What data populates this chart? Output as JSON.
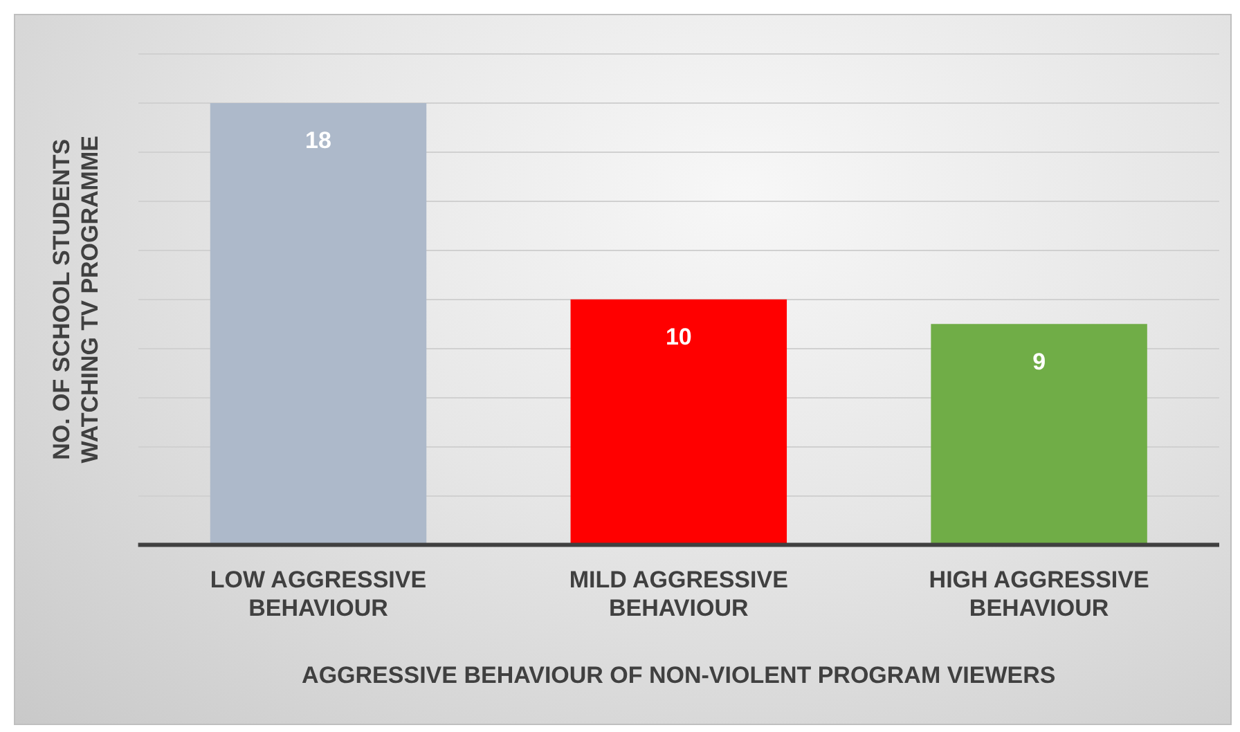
{
  "chart_data": {
    "type": "bar",
    "xlabel": "AGGRESSIVE BEHAVIOUR OF NON-VIOLENT PROGRAM VIEWERS",
    "ylabel": "NO. OF SCHOOL STUDENTS WATCHING TV PROGRAMME",
    "categories": [
      "LOW AGGRESSIVE BEHAVIOUR",
      "MILD AGGRESSIVE BEHAVIOUR",
      "HIGH AGGRESSIVE BEHAVIOUR"
    ],
    "values": [
      18,
      10,
      9
    ],
    "colors": [
      "#adb9ca",
      "#ff0000",
      "#70ad47"
    ],
    "ylim": [
      0,
      20
    ],
    "yticks": [
      {
        "value": 0,
        "label": null
      },
      {
        "value": 2,
        "label": null
      },
      {
        "value": 4,
        "label": null
      },
      {
        "value": 6,
        "label": null
      },
      {
        "value": 8,
        "label": null
      },
      {
        "value": 10,
        "label": null
      },
      {
        "value": 12,
        "label": null
      },
      {
        "value": 14,
        "label": null
      },
      {
        "value": 16,
        "label": null
      },
      {
        "value": 18,
        "label": null
      },
      {
        "value": 20,
        "label": null
      }
    ],
    "grid": "y",
    "tick_labels": "x",
    "data_labels": true,
    "legend": false
  }
}
